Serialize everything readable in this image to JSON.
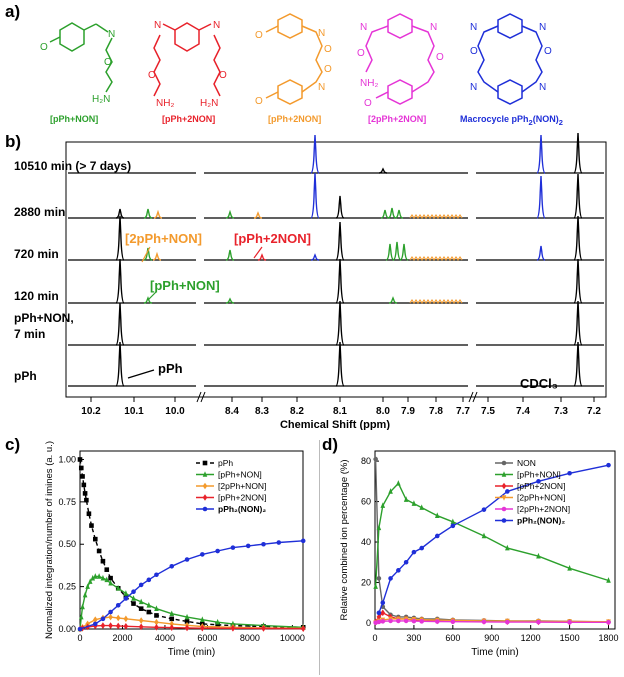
{
  "panels": {
    "a": "a)",
    "b": "b)",
    "c": "c)",
    "d": "d)"
  },
  "colors": {
    "green": "#2ca02c",
    "red": "#e8222b",
    "orange": "#f39a2d",
    "magenta": "#e535d6",
    "blue": "#1f2fd8",
    "black": "#000000",
    "gray": "#666666"
  },
  "structures": [
    {
      "caption": "[pPh+NON]",
      "color": "#2ca02c",
      "atoms": [
        "O",
        "N",
        "O",
        "H₂N"
      ]
    },
    {
      "caption": "[pPh+2NON]",
      "color": "#e8222b",
      "atoms": [
        "N",
        "N",
        "O",
        "O",
        "NH₂",
        "H₂N"
      ]
    },
    {
      "caption": "[pPh+2NON]",
      "color": "#f39a2d",
      "atoms": [
        "O",
        "N",
        "O",
        "O",
        "N",
        "O"
      ]
    },
    {
      "caption": "[2pPh+2NON]",
      "color": "#e535d6",
      "atoms": [
        "N",
        "N",
        "O",
        "O",
        "NH₂",
        "O"
      ]
    },
    {
      "caption": "Macrocycle pPh",
      "caption_sub": "2",
      "caption_tail": "(NON)",
      "caption_sub2": "2",
      "color": "#1f2fd8",
      "atoms": [
        "N",
        "N",
        "O",
        "O",
        "N",
        "N"
      ]
    }
  ],
  "nmr": {
    "xlabel": "Chemical Shift (ppm)",
    "ticks": [
      "10.2",
      "10.1",
      "10.0",
      "8.4",
      "8.3",
      "8.2",
      "8.1",
      "8.0",
      "7.9",
      "7.8",
      "7.7",
      "7.5",
      "7.4",
      "7.3",
      "7.2"
    ],
    "traces": [
      {
        "label": "10510 min (> 7 days)"
      },
      {
        "label": "2880 min"
      },
      {
        "label": "720 min"
      },
      {
        "label": "120 min"
      },
      {
        "label": "pPh+NON,",
        "label2": "7 min"
      },
      {
        "label": "pPh"
      }
    ],
    "annotations": {
      "a1": "[2pPh+NON]",
      "a2": "[pPh+2NON]",
      "a3": "[pPh+NON]",
      "a4": "pPh",
      "a5": "CDCl₃"
    }
  },
  "chart_c": {
    "type": "line",
    "ylabel": "Normalized integration/number of imines (a. u.)",
    "xlabel": "Time (min)",
    "xlim": [
      0,
      10500
    ],
    "ylim": [
      0,
      1.05
    ],
    "xticks": [
      0,
      2000,
      4000,
      6000,
      8000,
      10000
    ],
    "yticks": [
      "0.00",
      "0.25",
      "0.50",
      "0.75",
      "1.00"
    ],
    "legend": [
      "pPh",
      "[pPh+NON]",
      "[2pPh+NON]",
      "[pPh+2NON]",
      "pPh₂(NON)₂"
    ],
    "series": [
      {
        "name": "pPh",
        "color": "#000000",
        "marker": "square",
        "dashed": true,
        "x": [
          0,
          60,
          120,
          180,
          240,
          300,
          420,
          540,
          720,
          900,
          1080,
          1260,
          1440,
          1800,
          2160,
          2520,
          2880,
          3240,
          3600,
          4320,
          5040,
          5760,
          6480,
          7200,
          8640,
          10510
        ],
        "y": [
          1.0,
          0.95,
          0.9,
          0.85,
          0.8,
          0.76,
          0.68,
          0.61,
          0.53,
          0.46,
          0.4,
          0.35,
          0.3,
          0.24,
          0.19,
          0.15,
          0.12,
          0.1,
          0.08,
          0.06,
          0.045,
          0.03,
          0.025,
          0.02,
          0.015,
          0.01
        ]
      },
      {
        "name": "[pPh+NON]",
        "color": "#2ca02c",
        "marker": "triangle",
        "x": [
          0,
          60,
          120,
          240,
          360,
          480,
          600,
          720,
          900,
          1080,
          1260,
          1440,
          1800,
          2160,
          2520,
          2880,
          3240,
          3600,
          4320,
          5040,
          5760,
          6480,
          7200,
          8640,
          10510
        ],
        "y": [
          0.0,
          0.07,
          0.13,
          0.2,
          0.25,
          0.28,
          0.3,
          0.31,
          0.31,
          0.3,
          0.29,
          0.27,
          0.24,
          0.21,
          0.18,
          0.16,
          0.14,
          0.12,
          0.09,
          0.07,
          0.055,
          0.04,
          0.03,
          0.02,
          0.01
        ]
      },
      {
        "name": "[2pPh+NON]",
        "color": "#f39a2d",
        "marker": "diamond",
        "x": [
          0,
          120,
          360,
          720,
          1080,
          1440,
          1800,
          2160,
          2880,
          3600,
          4320,
          5040,
          5760,
          7200,
          8640,
          10510
        ],
        "y": [
          0.0,
          0.01,
          0.03,
          0.055,
          0.065,
          0.07,
          0.065,
          0.06,
          0.05,
          0.04,
          0.03,
          0.022,
          0.015,
          0.01,
          0.006,
          0.004
        ]
      },
      {
        "name": "[pPh+2NON]",
        "color": "#e8222b",
        "marker": "diamond",
        "x": [
          0,
          120,
          360,
          720,
          1080,
          1440,
          1800,
          2160,
          2880,
          3600,
          4320,
          5040,
          5760,
          7200,
          8640,
          10510
        ],
        "y": [
          0.0,
          0.005,
          0.012,
          0.018,
          0.02,
          0.02,
          0.018,
          0.016,
          0.013,
          0.01,
          0.008,
          0.006,
          0.005,
          0.004,
          0.003,
          0.002
        ]
      },
      {
        "name": "pPh₂(NON)₂",
        "color": "#1f2fd8",
        "marker": "circle",
        "x": [
          0,
          720,
          1080,
          1440,
          1800,
          2160,
          2520,
          2880,
          3240,
          3600,
          4320,
          5040,
          5760,
          6480,
          7200,
          7920,
          8640,
          9360,
          10510
        ],
        "y": [
          0.0,
          0.03,
          0.06,
          0.1,
          0.14,
          0.18,
          0.22,
          0.26,
          0.29,
          0.32,
          0.37,
          0.41,
          0.44,
          0.46,
          0.48,
          0.49,
          0.5,
          0.51,
          0.52
        ]
      }
    ]
  },
  "chart_d": {
    "type": "line",
    "ylabel": "Relative combined ion percentage (%)",
    "xlabel": "Time (min)",
    "xlim": [
      0,
      1850
    ],
    "ylim": [
      -3,
      85
    ],
    "xticks": [
      0,
      300,
      600,
      900,
      1200,
      1500,
      1800
    ],
    "yticks": [
      0,
      20,
      40,
      60,
      80
    ],
    "legend": [
      "NON",
      "[pPh+NON]",
      "[pPh+2NON]",
      "[2pPh+NON]",
      "[2pPh+2NON]",
      "pPh₂(NON)₂"
    ],
    "series": [
      {
        "name": "NON",
        "color": "#666666",
        "marker": "circle",
        "x": [
          5,
          30,
          60,
          120,
          180,
          240,
          300,
          360,
          480,
          600,
          840,
          1020,
          1260,
          1500,
          1800
        ],
        "y": [
          81,
          22,
          8,
          4,
          3,
          3,
          2.5,
          2,
          2,
          1.5,
          1.2,
          1,
          1,
          0.8,
          0.5
        ]
      },
      {
        "name": "[pPh+NON]",
        "color": "#2ca02c",
        "marker": "triangle",
        "x": [
          5,
          30,
          60,
          120,
          180,
          240,
          300,
          360,
          480,
          600,
          840,
          1020,
          1260,
          1500,
          1800
        ],
        "y": [
          18,
          47,
          58,
          65,
          69,
          61,
          59,
          57,
          53,
          50,
          43,
          37,
          33,
          27,
          21
        ]
      },
      {
        "name": "[pPh+2NON]",
        "color": "#e8222b",
        "marker": "diamond",
        "x": [
          5,
          30,
          60,
          120,
          180,
          240,
          300,
          360,
          480,
          600,
          840,
          1020,
          1260,
          1500,
          1800
        ],
        "y": [
          0.5,
          3,
          5,
          3,
          2,
          2,
          1.5,
          1.5,
          1,
          1,
          0.8,
          0.6,
          0.5,
          0.4,
          0.3
        ]
      },
      {
        "name": "[2pPh+NON]",
        "color": "#f39a2d",
        "marker": "triangle-down",
        "x": [
          5,
          30,
          60,
          120,
          180,
          240,
          300,
          360,
          480,
          600,
          840,
          1020,
          1260,
          1500,
          1800
        ],
        "y": [
          0.2,
          1,
          1.5,
          2,
          2,
          2,
          1.8,
          1.6,
          1.4,
          1.2,
          1,
          0.9,
          0.8,
          0.7,
          0.6
        ]
      },
      {
        "name": "[2pPh+2NON]",
        "color": "#e535d6",
        "marker": "circle",
        "x": [
          5,
          30,
          60,
          120,
          180,
          240,
          300,
          360,
          480,
          600,
          840,
          1020,
          1260,
          1500,
          1800
        ],
        "y": [
          0.1,
          0.5,
          0.8,
          1,
          1,
          1,
          0.9,
          0.8,
          0.7,
          0.6,
          0.5,
          0.4,
          0.4,
          0.3,
          0.3
        ]
      },
      {
        "name": "pPh₂(NON)₂",
        "color": "#1f2fd8",
        "marker": "circle",
        "x": [
          30,
          60,
          120,
          180,
          240,
          300,
          360,
          480,
          600,
          840,
          1020,
          1260,
          1500,
          1800
        ],
        "y": [
          5,
          10,
          22,
          26,
          30,
          35,
          37,
          43,
          48,
          56,
          65,
          70,
          74,
          78
        ]
      }
    ]
  }
}
